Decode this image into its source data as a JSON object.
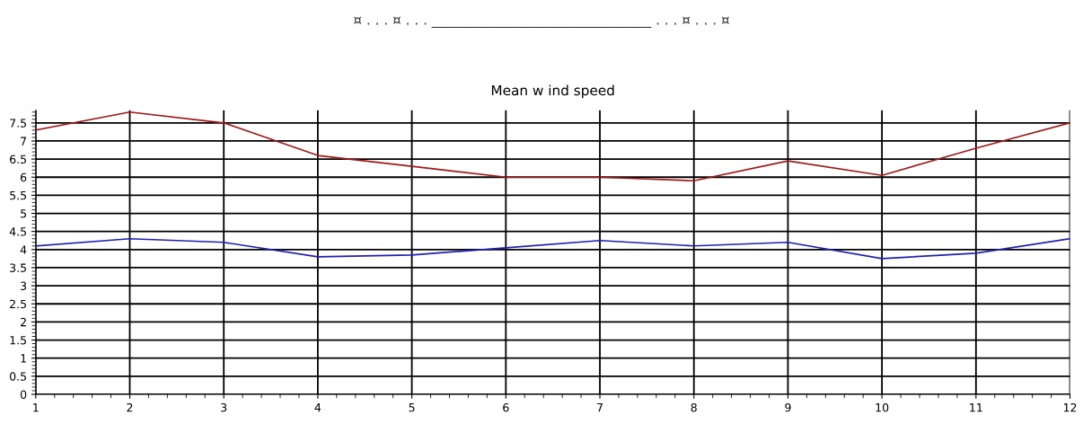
{
  "chart_data": {
    "type": "line",
    "title": "Mean w ind speed",
    "annotations": [
      "¤ . . . ¤ . . . ________________________________ . . . ¤ . . . ¤"
    ],
    "x": [
      1,
      2,
      3,
      4,
      5,
      6,
      7,
      8,
      9,
      10,
      11,
      12
    ],
    "series": [
      {
        "color": "#a01818",
        "values": [
          7.3,
          7.8,
          7.5,
          6.6,
          6.3,
          6.0,
          6.0,
          5.9,
          6.45,
          6.05,
          6.8,
          7.5
        ]
      },
      {
        "color": "#2020b0",
        "values": [
          4.1,
          4.3,
          4.2,
          3.8,
          3.85,
          4.05,
          4.25,
          4.1,
          4.2,
          3.75,
          3.9,
          4.3
        ]
      }
    ],
    "xlim": [
      1,
      12
    ],
    "xticks": [
      1,
      2,
      3,
      4,
      5,
      6,
      7,
      8,
      9,
      10,
      11,
      12
    ],
    "ylim": [
      0,
      7.85
    ],
    "yticks": [
      0,
      0.5,
      1,
      1.5,
      2,
      2.5,
      3,
      3.5,
      4,
      4.5,
      5,
      5.5,
      6,
      6.5,
      7,
      7.5
    ],
    "grid": true,
    "marker": "none",
    "line_style": "solid"
  }
}
